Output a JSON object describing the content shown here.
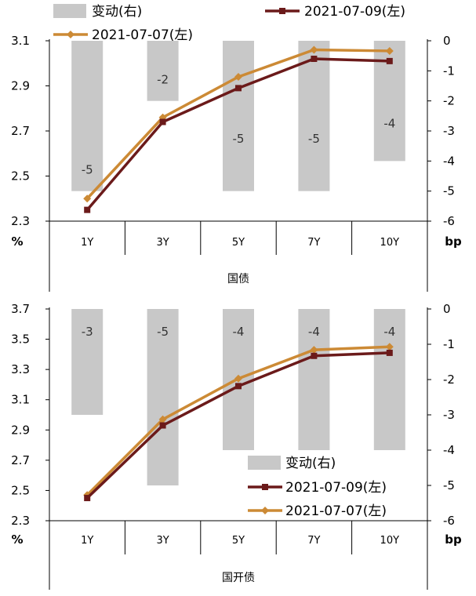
{
  "chart_data": [
    {
      "type": "bar+line",
      "xlabel": "国债",
      "left_unit": "%",
      "right_unit": "bp",
      "categories": [
        "1Y",
        "3Y",
        "5Y",
        "7Y",
        "10Y"
      ],
      "left_ylim": [
        2.3,
        3.1
      ],
      "left_ticks": [
        "3.1",
        "2.9",
        "2.7",
        "2.5",
        "2.3"
      ],
      "right_ylim": [
        -6,
        0
      ],
      "right_ticks": [
        "0",
        "-1",
        "-2",
        "-3",
        "-4",
        "-5",
        "-6"
      ],
      "legend_position": "top",
      "series": [
        {
          "name": "变动(右)",
          "type": "bar",
          "axis": "right",
          "color": "#c8c8c8",
          "values": [
            -5,
            -2,
            -5,
            -5,
            -4
          ]
        },
        {
          "name": "2021-07-09(左)",
          "type": "line",
          "axis": "left",
          "color": "#6b1a1a",
          "marker": "square",
          "values": [
            2.35,
            2.74,
            2.89,
            3.02,
            3.01
          ]
        },
        {
          "name": "2021-07-07(左)",
          "type": "line",
          "axis": "left",
          "color": "#cc8a35",
          "marker": "diamond",
          "values": [
            2.4,
            2.76,
            2.94,
            3.06,
            3.055
          ]
        }
      ]
    },
    {
      "type": "bar+line",
      "xlabel": "国开债",
      "left_unit": "%",
      "right_unit": "bp",
      "categories": [
        "1Y",
        "3Y",
        "5Y",
        "7Y",
        "10Y"
      ],
      "left_ylim": [
        2.3,
        3.7
      ],
      "left_ticks": [
        "3.7",
        "3.5",
        "3.3",
        "3.1",
        "2.9",
        "2.7",
        "2.5",
        "2.3"
      ],
      "right_ylim": [
        -6,
        0
      ],
      "right_ticks": [
        "0",
        "-1",
        "-2",
        "-3",
        "-4",
        "-5",
        "-6"
      ],
      "legend_position": "bottom-right",
      "series": [
        {
          "name": "变动(右)",
          "type": "bar",
          "axis": "right",
          "color": "#c8c8c8",
          "values": [
            -3,
            -5,
            -4,
            -4,
            -4
          ]
        },
        {
          "name": "2021-07-09(左)",
          "type": "line",
          "axis": "left",
          "color": "#6b1a1a",
          "marker": "square",
          "values": [
            2.45,
            2.93,
            3.19,
            3.39,
            3.41
          ]
        },
        {
          "name": "2021-07-07(左)",
          "type": "line",
          "axis": "left",
          "color": "#cc8a35",
          "marker": "diamond",
          "values": [
            2.47,
            2.97,
            3.24,
            3.43,
            3.45
          ]
        }
      ]
    }
  ]
}
